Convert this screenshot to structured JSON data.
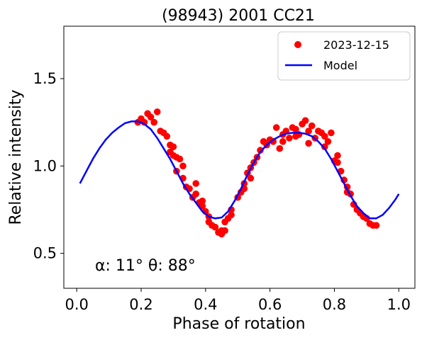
{
  "chart_data": {
    "type": "scatter",
    "title": "(98943) 2001 CC21",
    "xlabel": "Phase of rotation",
    "ylabel": "Relative intensity",
    "xlim": [
      -0.04,
      1.05
    ],
    "ylim": [
      0.3,
      1.8
    ],
    "xticks": [
      0.0,
      0.2,
      0.4,
      0.6,
      0.8,
      1.0
    ],
    "xtick_labels": [
      "0.0",
      "0.2",
      "0.4",
      "0.6",
      "0.8",
      "1.0"
    ],
    "yticks": [
      0.5,
      1.0,
      1.5
    ],
    "ytick_labels": [
      "0.5",
      "1.0",
      "1.5"
    ],
    "grid": false,
    "legend_position": "top-right",
    "annotation": "α: 11° θ: 88°",
    "series": [
      {
        "name": "2023-12-15",
        "kind": "scatter",
        "color": "#ff0000",
        "points": [
          [
            0.19,
            1.25
          ],
          [
            0.2,
            1.27
          ],
          [
            0.21,
            1.25
          ],
          [
            0.22,
            1.3
          ],
          [
            0.23,
            1.28
          ],
          [
            0.24,
            1.25
          ],
          [
            0.25,
            1.31
          ],
          [
            0.26,
            1.2
          ],
          [
            0.27,
            1.19
          ],
          [
            0.28,
            1.17
          ],
          [
            0.29,
            1.08
          ],
          [
            0.29,
            1.12
          ],
          [
            0.3,
            1.11
          ],
          [
            0.3,
            1.06
          ],
          [
            0.31,
            0.97
          ],
          [
            0.31,
            1.05
          ],
          [
            0.32,
            1.04
          ],
          [
            0.33,
            1.0
          ],
          [
            0.33,
            0.93
          ],
          [
            0.34,
            0.88
          ],
          [
            0.35,
            0.87
          ],
          [
            0.36,
            0.82
          ],
          [
            0.37,
            0.84
          ],
          [
            0.37,
            0.9
          ],
          [
            0.38,
            0.79
          ],
          [
            0.39,
            0.8
          ],
          [
            0.39,
            0.77
          ],
          [
            0.4,
            0.74
          ],
          [
            0.41,
            0.71
          ],
          [
            0.41,
            0.68
          ],
          [
            0.42,
            0.66
          ],
          [
            0.43,
            0.65
          ],
          [
            0.44,
            0.62
          ],
          [
            0.45,
            0.61
          ],
          [
            0.45,
            0.63
          ],
          [
            0.46,
            0.63
          ],
          [
            0.46,
            0.68
          ],
          [
            0.47,
            0.7
          ],
          [
            0.48,
            0.72
          ],
          [
            0.48,
            0.75
          ],
          [
            0.5,
            0.82
          ],
          [
            0.51,
            0.85
          ],
          [
            0.52,
            0.87
          ],
          [
            0.52,
            0.9
          ],
          [
            0.53,
            0.96
          ],
          [
            0.54,
            0.93
          ],
          [
            0.54,
            0.99
          ],
          [
            0.55,
            1.02
          ],
          [
            0.56,
            1.05
          ],
          [
            0.57,
            1.09
          ],
          [
            0.58,
            1.14
          ],
          [
            0.59,
            1.12
          ],
          [
            0.6,
            1.15
          ],
          [
            0.61,
            1.14
          ],
          [
            0.62,
            1.22
          ],
          [
            0.63,
            1.1
          ],
          [
            0.64,
            1.18
          ],
          [
            0.64,
            1.14
          ],
          [
            0.65,
            1.2
          ],
          [
            0.66,
            1.16
          ],
          [
            0.67,
            1.22
          ],
          [
            0.68,
            1.17
          ],
          [
            0.68,
            1.21
          ],
          [
            0.69,
            1.18
          ],
          [
            0.7,
            1.24
          ],
          [
            0.71,
            1.26
          ],
          [
            0.72,
            1.13
          ],
          [
            0.72,
            1.2
          ],
          [
            0.73,
            1.23
          ],
          [
            0.74,
            1.16
          ],
          [
            0.75,
            1.2
          ],
          [
            0.76,
            1.19
          ],
          [
            0.77,
            1.11
          ],
          [
            0.77,
            1.17
          ],
          [
            0.78,
            1.14
          ],
          [
            0.79,
            1.19
          ],
          [
            0.8,
            1.03
          ],
          [
            0.81,
            1.06
          ],
          [
            0.81,
            1.02
          ],
          [
            0.82,
            0.97
          ],
          [
            0.83,
            0.92
          ],
          [
            0.84,
            0.88
          ],
          [
            0.84,
            0.85
          ],
          [
            0.85,
            0.84
          ],
          [
            0.86,
            0.78
          ],
          [
            0.87,
            0.75
          ],
          [
            0.88,
            0.73
          ],
          [
            0.89,
            0.71
          ],
          [
            0.9,
            0.7
          ],
          [
            0.91,
            0.67
          ],
          [
            0.92,
            0.66
          ],
          [
            0.93,
            0.66
          ]
        ]
      },
      {
        "name": "Model",
        "kind": "line",
        "color": "#0000ff",
        "points": [
          [
            0.01,
            0.9
          ],
          [
            0.03,
            0.97
          ],
          [
            0.05,
            1.04
          ],
          [
            0.07,
            1.1
          ],
          [
            0.09,
            1.15
          ],
          [
            0.11,
            1.19
          ],
          [
            0.13,
            1.22
          ],
          [
            0.15,
            1.245
          ],
          [
            0.17,
            1.255
          ],
          [
            0.19,
            1.255
          ],
          [
            0.21,
            1.24
          ],
          [
            0.23,
            1.21
          ],
          [
            0.25,
            1.16
          ],
          [
            0.27,
            1.1
          ],
          [
            0.29,
            1.04
          ],
          [
            0.31,
            0.97
          ],
          [
            0.33,
            0.9
          ],
          [
            0.35,
            0.84
          ],
          [
            0.37,
            0.79
          ],
          [
            0.39,
            0.74
          ],
          [
            0.41,
            0.71
          ],
          [
            0.43,
            0.7
          ],
          [
            0.45,
            0.705
          ],
          [
            0.47,
            0.74
          ],
          [
            0.49,
            0.8
          ],
          [
            0.51,
            0.87
          ],
          [
            0.53,
            0.95
          ],
          [
            0.55,
            1.02
          ],
          [
            0.57,
            1.08
          ],
          [
            0.59,
            1.12
          ],
          [
            0.61,
            1.15
          ],
          [
            0.63,
            1.17
          ],
          [
            0.65,
            1.185
          ],
          [
            0.67,
            1.19
          ],
          [
            0.69,
            1.19
          ],
          [
            0.71,
            1.185
          ],
          [
            0.73,
            1.17
          ],
          [
            0.75,
            1.14
          ],
          [
            0.77,
            1.1
          ],
          [
            0.79,
            1.04
          ],
          [
            0.81,
            0.97
          ],
          [
            0.83,
            0.9
          ],
          [
            0.85,
            0.83
          ],
          [
            0.87,
            0.77
          ],
          [
            0.89,
            0.73
          ],
          [
            0.91,
            0.7
          ],
          [
            0.93,
            0.7
          ],
          [
            0.95,
            0.72
          ],
          [
            0.97,
            0.76
          ],
          [
            0.99,
            0.81
          ],
          [
            1.0,
            0.84
          ]
        ]
      }
    ]
  }
}
